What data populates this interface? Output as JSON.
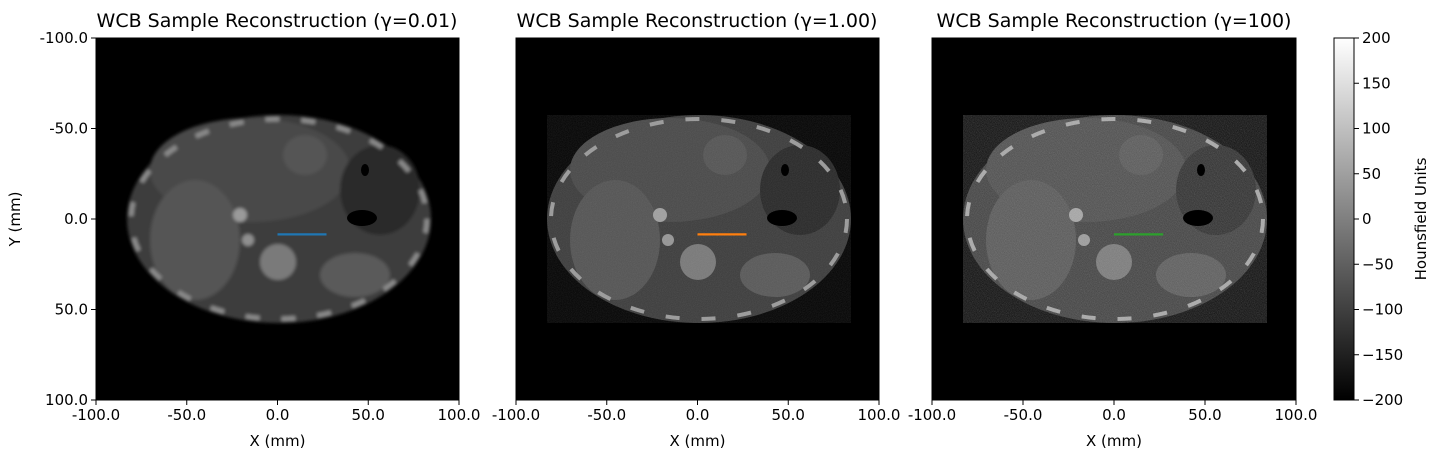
{
  "chart_data": [
    {
      "type": "heatmap",
      "title": "WCB Sample Reconstruction (γ=0.01)",
      "xlabel": "X (mm)",
      "ylabel": "Y (mm)",
      "xlim": [
        -100,
        100
      ],
      "ylim": [
        100,
        -100
      ],
      "x_ticks": [
        "-100.0",
        "-50.0",
        "0.0",
        "50.0",
        "100.0"
      ],
      "y_ticks": [
        "-100.0",
        "-50.0",
        "0.0",
        "50.0",
        "100.0"
      ],
      "profile_line": {
        "x": [
          0,
          27
        ],
        "y": [
          8.5,
          8.5
        ],
        "color": "#1f77b4"
      }
    },
    {
      "type": "heatmap",
      "title": "WCB Sample Reconstruction (γ=1.00)",
      "xlabel": "X (mm)",
      "ylabel": "",
      "xlim": [
        -100,
        100
      ],
      "ylim": [
        100,
        -100
      ],
      "x_ticks": [
        "-100.0",
        "-50.0",
        "0.0",
        "50.0",
        "100.0"
      ],
      "y_ticks": [],
      "profile_line": {
        "x": [
          0,
          27
        ],
        "y": [
          8.5,
          8.5
        ],
        "color": "#ff7f0e"
      }
    },
    {
      "type": "heatmap",
      "title": "WCB Sample Reconstruction (γ=100)",
      "xlabel": "X (mm)",
      "ylabel": "",
      "xlim": [
        -100,
        100
      ],
      "ylim": [
        100,
        -100
      ],
      "x_ticks": [
        "-100.0",
        "-50.0",
        "0.0",
        "50.0",
        "100.0"
      ],
      "y_ticks": [],
      "profile_line": {
        "x": [
          0,
          27
        ],
        "y": [
          8.5,
          8.5
        ],
        "color": "#2ca02c"
      }
    }
  ],
  "colorbar": {
    "label": "Hounsfield Units",
    "range": [
      -200,
      200
    ],
    "ticks": [
      {
        "value": 200,
        "label": "200"
      },
      {
        "value": 150,
        "label": "150"
      },
      {
        "value": 100,
        "label": "100"
      },
      {
        "value": 50,
        "label": "50"
      },
      {
        "value": 0,
        "label": "0"
      },
      {
        "value": -50,
        "label": "−50"
      },
      {
        "value": -100,
        "label": "−100"
      },
      {
        "value": -150,
        "label": "−150"
      },
      {
        "value": -200,
        "label": "−200"
      }
    ]
  }
}
